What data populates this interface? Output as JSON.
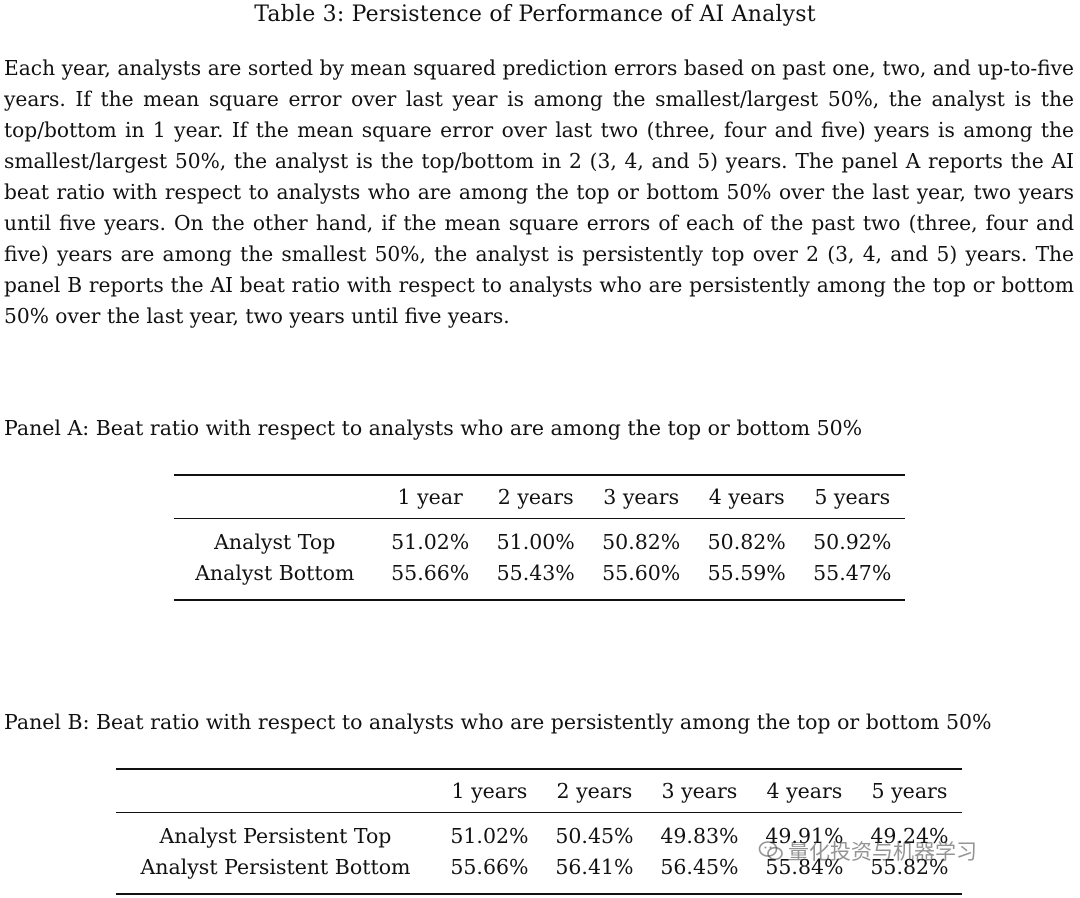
{
  "title": "Table 3: Persistence of Performance of AI Analyst",
  "description": "Each year, analysts are sorted by mean squared prediction errors based on past one, two, and up-to-five years. If the mean square error over last year is among the smallest/largest 50%, the analyst is the top/bottom in 1 year. If the mean square error over last two (three, four and five) years is among the smallest/largest 50%, the analyst is the top/bottom in 2 (3, 4, and 5) years. The panel A reports the AI beat ratio with respect to analysts who are among the top or bottom 50% over the last year, two years until five years. On the other hand, if the mean square errors of each of the past two (three, four and five) years are among the smallest 50%, the analyst is persistently top over 2 (3, 4, and 5) years. The panel B reports the AI beat ratio with respect to analysts who are persistently among the top or bottom 50% over the last year, two years until five years.",
  "panel_a": {
    "heading": "Panel A: Beat ratio with respect to analysts who are among the top or bottom 50%",
    "columns": [
      "1 year",
      "2 years",
      "3 years",
      "4 years",
      "5 years"
    ],
    "rows": [
      {
        "label": "Analyst Top",
        "values": [
          "51.02%",
          "51.00%",
          "50.82%",
          "50.82%",
          "50.92%"
        ]
      },
      {
        "label": "Analyst Bottom",
        "values": [
          "55.66%",
          "55.43%",
          "55.60%",
          "55.59%",
          "55.47%"
        ]
      }
    ]
  },
  "panel_b": {
    "heading": "Panel B: Beat ratio with respect to analysts who are persistently among the top or bottom 50%",
    "columns": [
      "1 years",
      "2 years",
      "3 years",
      "4 years",
      "5 years"
    ],
    "rows": [
      {
        "label": "Analyst Persistent Top",
        "values": [
          "51.02%",
          "50.45%",
          "49.83%",
          "49.91%",
          "49.24%"
        ]
      },
      {
        "label": "Analyst Persistent Bottom",
        "values": [
          "55.66%",
          "56.41%",
          "56.45%",
          "55.84%",
          "55.82%"
        ]
      }
    ]
  },
  "watermark": {
    "icon": "wechat-icon",
    "text": "量化投资与机器学习"
  }
}
